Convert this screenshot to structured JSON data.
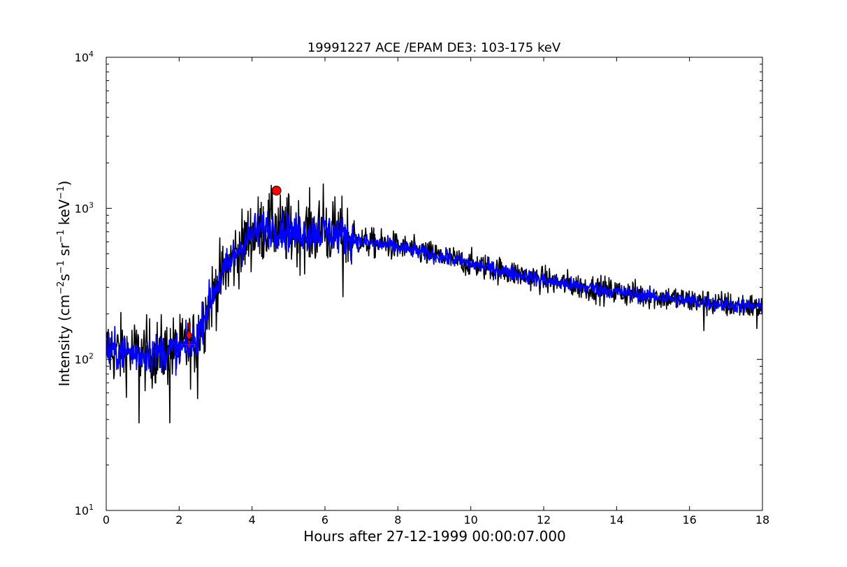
{
  "chart_data": {
    "type": "line",
    "title": "19991227 ACE /EPAM DE3: 103-175 keV",
    "xlabel": "Hours after 27-12-1999 00:00:07.000",
    "ylabel": {
      "prefix": "Intensity (cm",
      "exp1": "−2",
      "mid1": "s",
      "exp2": "−1",
      "mid2": " sr",
      "exp3": "−1",
      "mid3": " keV",
      "exp4": "−1",
      "suffix": ")"
    },
    "xlim": [
      0,
      18
    ],
    "ylim": [
      10,
      10000
    ],
    "yscale": "log",
    "grid": false,
    "x_ticks": [
      "0",
      "2",
      "4",
      "6",
      "8",
      "10",
      "12",
      "14",
      "16",
      "18"
    ],
    "y_ticks": [
      {
        "base": "10",
        "exp": "1"
      },
      {
        "base": "10",
        "exp": "2"
      },
      {
        "base": "10",
        "exp": "3"
      },
      {
        "base": "10",
        "exp": "4"
      }
    ],
    "series": [
      {
        "role": "raw",
        "color": "#000000",
        "anchors": [
          [
            0.0,
            115
          ],
          [
            0.5,
            112
          ],
          [
            1.0,
            108
          ],
          [
            1.5,
            112
          ],
          [
            2.0,
            115
          ],
          [
            2.4,
            125
          ],
          [
            2.6,
            165
          ],
          [
            2.8,
            230
          ],
          [
            3.0,
            300
          ],
          [
            3.3,
            400
          ],
          [
            3.6,
            520
          ],
          [
            4.0,
            680
          ],
          [
            4.4,
            760
          ],
          [
            4.8,
            720
          ],
          [
            5.2,
            690
          ],
          [
            5.6,
            700
          ],
          [
            6.0,
            710
          ],
          [
            6.5,
            660
          ],
          [
            7.0,
            600
          ],
          [
            7.5,
            580
          ],
          [
            8.0,
            555
          ],
          [
            9.0,
            490
          ],
          [
            10.0,
            430
          ],
          [
            11.0,
            380
          ],
          [
            12.0,
            335
          ],
          [
            13.0,
            305
          ],
          [
            14.0,
            280
          ],
          [
            15.0,
            262
          ],
          [
            16.0,
            245
          ],
          [
            17.0,
            230
          ],
          [
            18.0,
            222
          ]
        ],
        "spikes": [
          [
            0.9,
            38
          ],
          [
            1.75,
            38
          ],
          [
            2.5,
            55
          ],
          [
            4.55,
            1300
          ],
          [
            5.0,
            1250
          ],
          [
            5.95,
            1450
          ],
          [
            6.5,
            260
          ],
          [
            16.4,
            155
          ],
          [
            17.85,
            160
          ]
        ]
      },
      {
        "role": "smoothed",
        "color": "#0000ff",
        "anchors": [
          [
            0.0,
            115
          ],
          [
            0.5,
            112
          ],
          [
            1.0,
            108
          ],
          [
            1.5,
            112
          ],
          [
            2.0,
            115
          ],
          [
            2.4,
            125
          ],
          [
            2.6,
            165
          ],
          [
            2.8,
            230
          ],
          [
            3.0,
            300
          ],
          [
            3.3,
            400
          ],
          [
            3.6,
            520
          ],
          [
            4.0,
            680
          ],
          [
            4.4,
            760
          ],
          [
            4.8,
            720
          ],
          [
            5.2,
            690
          ],
          [
            5.6,
            700
          ],
          [
            6.0,
            710
          ],
          [
            6.5,
            660
          ],
          [
            7.0,
            600
          ],
          [
            7.5,
            580
          ],
          [
            8.0,
            555
          ],
          [
            9.0,
            490
          ],
          [
            10.0,
            430
          ],
          [
            11.0,
            380
          ],
          [
            12.0,
            335
          ],
          [
            13.0,
            305
          ],
          [
            14.0,
            280
          ],
          [
            15.0,
            262
          ],
          [
            16.0,
            245
          ],
          [
            17.0,
            230
          ],
          [
            18.0,
            222
          ]
        ]
      }
    ],
    "markers": [
      {
        "name": "onset",
        "shape": "diamond",
        "x": 2.27,
        "y": 145,
        "color": "#ff0000"
      },
      {
        "name": "peak",
        "shape": "circle",
        "x": 4.67,
        "y": 1310,
        "color": "#ff0000"
      }
    ],
    "onset_errorbar": {
      "x_from": 2.15,
      "x_to": 2.45,
      "y_from": 120,
      "y_to": 175,
      "color": "#ff0000"
    }
  }
}
